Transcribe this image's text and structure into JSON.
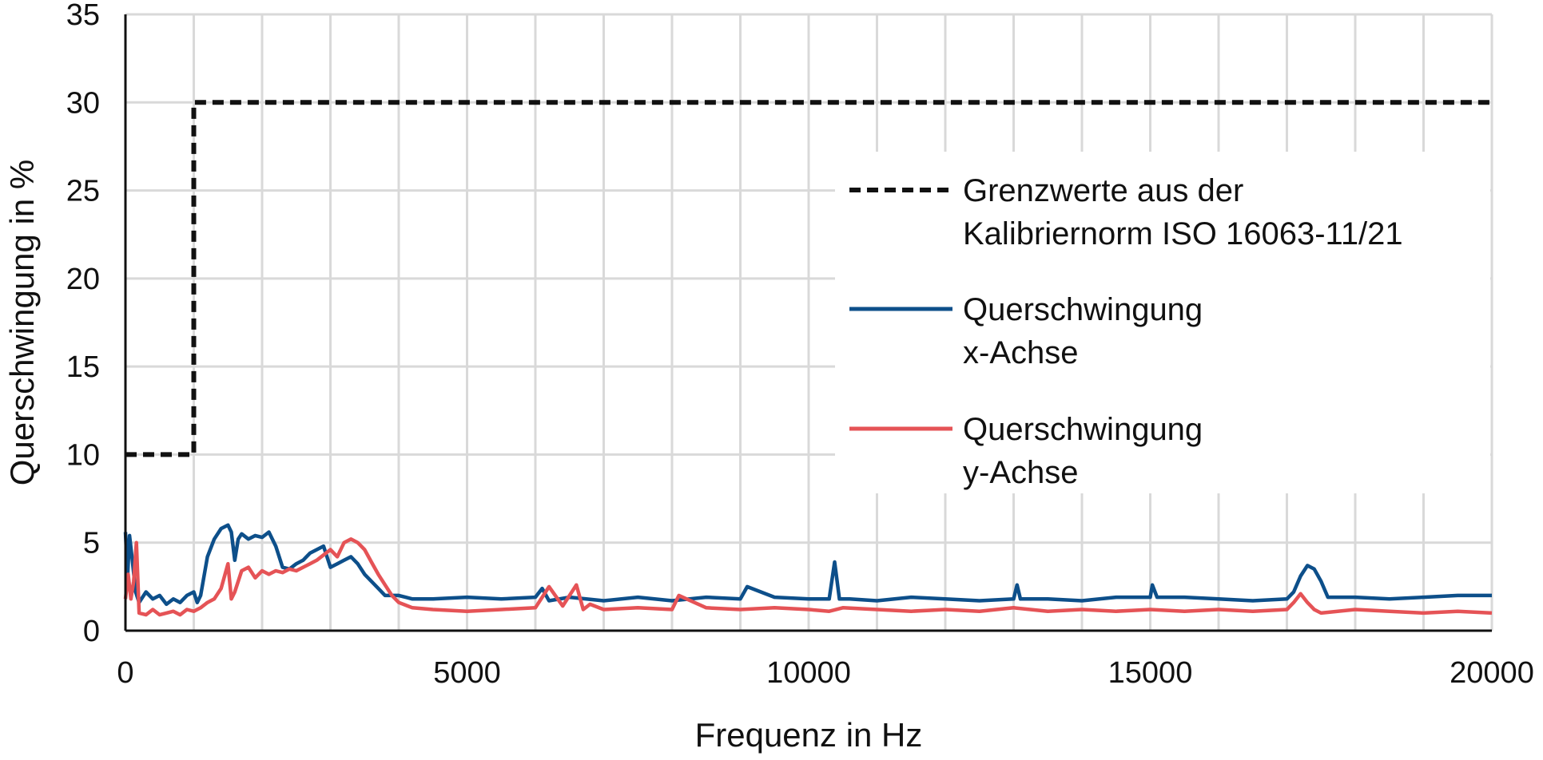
{
  "chart_data": {
    "type": "line",
    "xlabel": "Frequenz in Hz",
    "ylabel": "Querschwingung in %",
    "xlim": [
      0,
      20000
    ],
    "ylim": [
      0,
      35
    ],
    "x_ticks": [
      0,
      5000,
      10000,
      15000,
      20000
    ],
    "y_ticks": [
      0,
      5,
      10,
      15,
      20,
      25,
      30,
      35
    ],
    "x_tick_labels": [
      "0",
      "5000",
      "10000",
      "15000",
      "20000"
    ],
    "y_tick_labels": [
      "0",
      "5",
      "10",
      "15",
      "20",
      "25",
      "30",
      "35"
    ],
    "grid": true,
    "legend_position": "right",
    "series": [
      {
        "name": "Grenzwerte aus der Kalibriernorm ISO 16063-11/21",
        "legend_lines": [
          "Grenzwerte aus der",
          "Kalibriernorm ISO 16063-11/21"
        ],
        "color": "#111111",
        "style": "dashed",
        "x": [
          0,
          1000,
          1000,
          20000
        ],
        "y": [
          10,
          10,
          30,
          30
        ]
      },
      {
        "name": "Querschwingung x-Achse",
        "legend_lines": [
          "Querschwingung",
          "x-Achse"
        ],
        "color": "#0d4f8a",
        "style": "solid",
        "x": [
          0,
          30,
          60,
          100,
          150,
          200,
          300,
          400,
          500,
          600,
          700,
          800,
          900,
          1000,
          1050,
          1100,
          1200,
          1300,
          1400,
          1500,
          1550,
          1600,
          1650,
          1700,
          1800,
          1900,
          2000,
          2100,
          2200,
          2300,
          2400,
          2500,
          2600,
          2700,
          2800,
          2900,
          3000,
          3100,
          3200,
          3300,
          3400,
          3500,
          3600,
          3700,
          3800,
          3900,
          4000,
          4200,
          4500,
          5000,
          5500,
          6000,
          6100,
          6200,
          6500,
          7000,
          7500,
          8000,
          8500,
          9000,
          9100,
          9500,
          10000,
          10300,
          10380,
          10450,
          10600,
          11000,
          11500,
          12000,
          12500,
          13000,
          13050,
          13100,
          13500,
          14000,
          14500,
          15000,
          15030,
          15100,
          15500,
          16000,
          16500,
          17000,
          17100,
          17200,
          17300,
          17400,
          17500,
          17600,
          18000,
          18500,
          19000,
          19500,
          20000
        ],
        "y": [
          5.6,
          3.0,
          5.4,
          4.0,
          2.2,
          1.6,
          2.2,
          1.8,
          2.0,
          1.5,
          1.8,
          1.6,
          2.0,
          2.2,
          1.6,
          2.0,
          4.2,
          5.2,
          5.8,
          6.0,
          5.6,
          4.0,
          5.2,
          5.5,
          5.2,
          5.4,
          5.3,
          5.6,
          4.8,
          3.6,
          3.5,
          3.8,
          4.0,
          4.4,
          4.6,
          4.8,
          3.6,
          3.8,
          4.0,
          4.2,
          3.8,
          3.2,
          2.8,
          2.4,
          2.0,
          2.0,
          2.0,
          1.8,
          1.8,
          1.9,
          1.8,
          1.9,
          2.4,
          1.7,
          1.9,
          1.7,
          1.9,
          1.7,
          1.9,
          1.8,
          2.5,
          1.9,
          1.8,
          1.8,
          3.9,
          1.8,
          1.8,
          1.7,
          1.9,
          1.8,
          1.7,
          1.8,
          2.6,
          1.8,
          1.8,
          1.7,
          1.9,
          1.9,
          2.6,
          1.9,
          1.9,
          1.8,
          1.7,
          1.8,
          2.2,
          3.1,
          3.7,
          3.5,
          2.8,
          1.9,
          1.9,
          1.8,
          1.9,
          2.0,
          2.0
        ]
      },
      {
        "name": "Querschwingung y-Achse",
        "legend_lines": [
          "Querschwingung",
          "y-Achse"
        ],
        "color": "#e55356",
        "style": "solid",
        "x": [
          0,
          40,
          80,
          120,
          160,
          200,
          300,
          400,
          500,
          600,
          700,
          800,
          900,
          1000,
          1100,
          1200,
          1300,
          1400,
          1500,
          1550,
          1600,
          1700,
          1800,
          1900,
          2000,
          2100,
          2200,
          2300,
          2400,
          2500,
          2600,
          2700,
          2800,
          2900,
          3000,
          3100,
          3200,
          3300,
          3400,
          3500,
          3600,
          3700,
          3800,
          3900,
          4000,
          4200,
          4500,
          5000,
          5500,
          6000,
          6200,
          6400,
          6600,
          6700,
          6800,
          7000,
          7500,
          8000,
          8100,
          8500,
          9000,
          9500,
          10000,
          10300,
          10500,
          11000,
          11500,
          12000,
          12500,
          13000,
          13500,
          14000,
          14500,
          15000,
          15500,
          16000,
          16500,
          17000,
          17100,
          17200,
          17300,
          17400,
          17500,
          18000,
          18500,
          19000,
          19500,
          20000
        ],
        "y": [
          1.8,
          3.2,
          1.8,
          2.8,
          5.0,
          1.0,
          0.9,
          1.2,
          0.9,
          1.0,
          1.1,
          0.9,
          1.2,
          1.1,
          1.3,
          1.6,
          1.8,
          2.4,
          3.8,
          1.8,
          2.2,
          3.4,
          3.6,
          3.0,
          3.4,
          3.2,
          3.4,
          3.3,
          3.5,
          3.4,
          3.6,
          3.8,
          4.0,
          4.3,
          4.6,
          4.2,
          5.0,
          5.2,
          5.0,
          4.6,
          3.9,
          3.2,
          2.6,
          2.0,
          1.6,
          1.3,
          1.2,
          1.1,
          1.2,
          1.3,
          2.5,
          1.4,
          2.6,
          1.2,
          1.5,
          1.2,
          1.3,
          1.2,
          2.0,
          1.3,
          1.2,
          1.3,
          1.2,
          1.1,
          1.3,
          1.2,
          1.1,
          1.2,
          1.1,
          1.3,
          1.1,
          1.2,
          1.1,
          1.2,
          1.1,
          1.2,
          1.1,
          1.2,
          1.6,
          2.1,
          1.6,
          1.2,
          1.0,
          1.2,
          1.1,
          1.0,
          1.1,
          1.0
        ]
      }
    ]
  }
}
